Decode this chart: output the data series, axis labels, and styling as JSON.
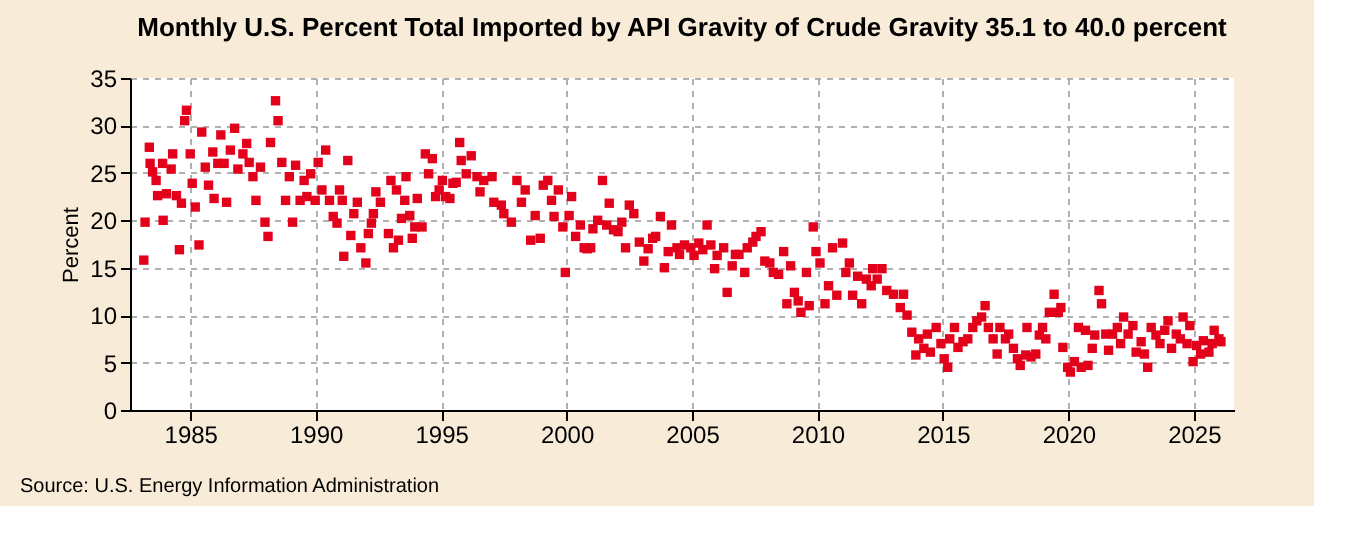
{
  "chart_data": {
    "type": "scatter",
    "title": "Monthly U.S. Percent Total Imported by API Gravity of Crude Gravity 35.1 to 40.0 percent",
    "ylabel": "Percent",
    "annotations": [
      "Source: U.S. Energy Information Administration"
    ],
    "xlim": [
      1982.6,
      2026.6
    ],
    "xticks": [
      1985,
      1990,
      1995,
      2000,
      2005,
      2010,
      2015,
      2020,
      2025
    ],
    "ylim": [
      0,
      35
    ],
    "yticks": [
      0,
      5,
      10,
      15,
      20,
      25,
      30,
      35
    ],
    "grid": true,
    "marker": "square",
    "series": [
      {
        "color": "#e3001b",
        "x": [
          1983.15,
          1983.2,
          1983.37,
          1983.4,
          1983.5,
          1983.64,
          1983.7,
          1983.9,
          1983.92,
          1984.05,
          1984.24,
          1984.3,
          1984.45,
          1984.57,
          1984.65,
          1984.78,
          1984.85,
          1985.0,
          1985.08,
          1985.2,
          1985.35,
          1985.46,
          1985.6,
          1985.73,
          1985.9,
          1985.95,
          1986.1,
          1986.22,
          1986.35,
          1986.45,
          1986.6,
          1986.77,
          1986.9,
          1987.1,
          1987.25,
          1987.35,
          1987.5,
          1987.62,
          1987.8,
          1987.98,
          1988.1,
          1988.2,
          1988.4,
          1988.5,
          1988.65,
          1988.8,
          1988.95,
          1989.08,
          1989.2,
          1989.38,
          1989.54,
          1989.65,
          1989.8,
          1989.98,
          1990.1,
          1990.25,
          1990.4,
          1990.55,
          1990.7,
          1990.85,
          1990.95,
          1991.06,
          1991.12,
          1991.28,
          1991.4,
          1991.52,
          1991.66,
          1991.8,
          1992.0,
          1992.1,
          1992.22,
          1992.3,
          1992.4,
          1992.58,
          1992.9,
          1993.0,
          1993.1,
          1993.22,
          1993.3,
          1993.42,
          1993.55,
          1993.6,
          1993.75,
          1993.85,
          1993.95,
          1994.05,
          1994.24,
          1994.37,
          1994.5,
          1994.65,
          1994.78,
          1994.92,
          1995.05,
          1995.18,
          1995.35,
          1995.47,
          1995.6,
          1995.74,
          1995.8,
          1996.0,
          1996.2,
          1996.43,
          1996.55,
          1996.7,
          1997.03,
          1997.1,
          1997.4,
          1997.5,
          1997.8,
          1998.02,
          1998.2,
          1998.35,
          1998.57,
          1998.75,
          1998.95,
          1999.07,
          1999.25,
          1999.4,
          1999.5,
          1999.67,
          1999.85,
          1999.95,
          2000.1,
          2000.2,
          2000.36,
          2000.55,
          2000.7,
          2000.82,
          2000.96,
          2001.05,
          2001.24,
          2001.43,
          2001.6,
          2001.7,
          2001.87,
          2002.05,
          2002.2,
          2002.35,
          2002.5,
          2002.68,
          2002.9,
          2003.08,
          2003.25,
          2003.43,
          2003.55,
          2003.74,
          2003.9,
          2004.05,
          2004.18,
          2004.4,
          2004.5,
          2004.7,
          2004.95,
          2005.08,
          2005.27,
          2005.43,
          2005.6,
          2005.75,
          2005.9,
          2006.0,
          2006.26,
          2006.4,
          2006.6,
          2006.73,
          2006.87,
          2007.1,
          2007.2,
          2007.42,
          2007.55,
          2007.75,
          2007.9,
          2008.1,
          2008.24,
          2008.45,
          2008.65,
          2008.78,
          2008.93,
          2009.08,
          2009.23,
          2009.34,
          2009.56,
          2009.67,
          2009.83,
          2009.94,
          2010.1,
          2010.3,
          2010.44,
          2010.6,
          2010.77,
          2011.0,
          2011.13,
          2011.27,
          2011.4,
          2011.6,
          2011.76,
          2011.95,
          2012.14,
          2012.2,
          2012.38,
          2012.57,
          2012.76,
          2013.03,
          2013.3,
          2013.43,
          2013.57,
          2013.76,
          2013.92,
          2014.03,
          2014.24,
          2014.38,
          2014.5,
          2014.73,
          2014.92,
          2015.05,
          2015.19,
          2015.27,
          2015.46,
          2015.6,
          2015.8,
          2015.99,
          2016.19,
          2016.35,
          2016.54,
          2016.68,
          2016.81,
          2017.0,
          2017.16,
          2017.27,
          2017.49,
          2017.62,
          2017.81,
          2017.97,
          2018.08,
          2018.3,
          2018.35,
          2018.51,
          2018.7,
          2018.84,
          2018.97,
          2019.1,
          2019.24,
          2019.43,
          2019.6,
          2019.7,
          2019.78,
          2019.97,
          2020.08,
          2020.24,
          2020.4,
          2020.51,
          2020.68,
          2020.78,
          2020.95,
          2021.05,
          2021.22,
          2021.32,
          2021.49,
          2021.6,
          2021.76,
          2021.95,
          2022.08,
          2022.2,
          2022.38,
          2022.57,
          2022.7,
          2022.9,
          2023.03,
          2023.16,
          2023.3,
          2023.49,
          2023.65,
          2023.84,
          2023.97,
          2024.11,
          2024.3,
          2024.46,
          2024.57,
          2024.73,
          2024.84,
          2024.97,
          2025.11,
          2025.27,
          2025.38,
          2025.6,
          2025.73,
          2025.81,
          2026.0,
          2026.08
        ],
        "values": [
          15.8,
          19.8,
          27.7,
          26.0,
          25.1,
          24.2,
          22.6,
          26.0,
          20.0,
          22.8,
          25.4,
          27.0,
          22.6,
          16.9,
          21.8,
          30.5,
          31.6,
          27.0,
          23.9,
          21.4,
          17.4,
          29.3,
          25.6,
          23.7,
          27.2,
          22.3,
          26.0,
          29.0,
          26.0,
          21.9,
          27.4,
          29.7,
          25.4,
          27.0,
          28.1,
          26.1,
          24.6,
          22.1,
          25.6,
          19.8,
          18.3,
          28.2,
          32.6,
          30.5,
          26.1,
          22.1,
          24.6,
          19.8,
          25.8,
          22.1,
          24.2,
          22.5,
          24.9,
          22.1,
          26.1,
          23.2,
          27.4,
          22.1,
          20.4,
          19.7,
          23.2,
          22.1,
          16.2,
          26.3,
          18.4,
          20.7,
          21.9,
          17.1,
          15.5,
          18.6,
          19.7,
          20.7,
          23.0,
          21.9,
          18.6,
          24.2,
          17.1,
          23.2,
          17.9,
          20.2,
          22.1,
          24.6,
          20.5,
          18.1,
          19.3,
          22.3,
          19.3,
          27.0,
          24.9,
          26.5,
          22.5,
          23.2,
          24.2,
          22.5,
          22.3,
          23.9,
          24.0,
          28.2,
          26.3,
          24.9,
          26.8,
          24.6,
          23.0,
          24.2,
          24.6,
          21.9,
          21.6,
          20.7,
          19.8,
          24.2,
          21.9,
          23.2,
          17.9,
          20.5,
          18.1,
          23.7,
          24.2,
          22.1,
          20.4,
          23.2,
          19.3,
          14.5,
          20.5,
          22.5,
          18.3,
          19.5,
          17.1,
          17.0,
          17.1,
          19.1,
          20.0,
          24.2,
          19.5,
          21.8,
          19.0,
          18.8,
          19.8,
          17.1,
          21.6,
          20.7,
          17.7,
          15.7,
          17.0,
          18.1,
          18.3,
          20.4,
          15.0,
          16.7,
          19.5,
          17.1,
          16.4,
          17.4,
          17.1,
          16.3,
          17.6,
          16.9,
          19.5,
          17.4,
          14.9,
          16.3,
          17.1,
          12.4,
          15.2,
          16.4,
          16.4,
          14.5,
          17.1,
          17.7,
          18.3,
          18.8,
          15.7,
          15.5,
          14.5,
          14.3,
          16.7,
          11.2,
          15.2,
          12.4,
          11.5,
          10.3,
          14.5,
          11.0,
          19.3,
          16.7,
          15.5,
          11.2,
          13.1,
          17.1,
          12.1,
          17.6,
          14.5,
          15.5,
          12.1,
          14.1,
          11.2,
          13.8,
          13.1,
          14.9,
          13.8,
          14.9,
          12.6,
          12.2,
          10.8,
          12.2,
          10.0,
          8.2,
          5.8,
          7.5,
          6.5,
          8.0,
          6.1,
          8.7,
          7.0,
          5.4,
          4.5,
          7.5,
          8.7,
          6.6,
          7.2,
          7.5,
          8.7,
          9.4,
          9.8,
          11.0,
          8.7,
          7.5,
          5.9,
          8.7,
          7.5,
          8.0,
          6.5,
          5.4,
          4.7,
          5.8,
          8.7,
          5.6,
          5.9,
          7.9,
          8.7,
          7.5,
          10.3,
          12.2,
          10.3,
          10.8,
          6.6,
          4.5,
          4.0,
          5.1,
          8.7,
          4.5,
          8.4,
          4.7,
          6.5,
          7.9,
          12.6,
          11.2,
          8.0,
          6.3,
          8.0,
          8.7,
          7.0,
          9.8,
          8.0,
          8.9,
          6.1,
          7.2,
          5.9,
          4.5,
          8.7,
          7.9,
          7.0,
          8.4,
          9.4,
          6.5,
          8.0,
          7.5,
          9.8,
          7.0,
          8.9,
          5.1,
          6.8,
          5.9,
          7.3,
          6.1,
          7.0,
          8.4,
          7.5,
          7.2
        ]
      }
    ]
  }
}
